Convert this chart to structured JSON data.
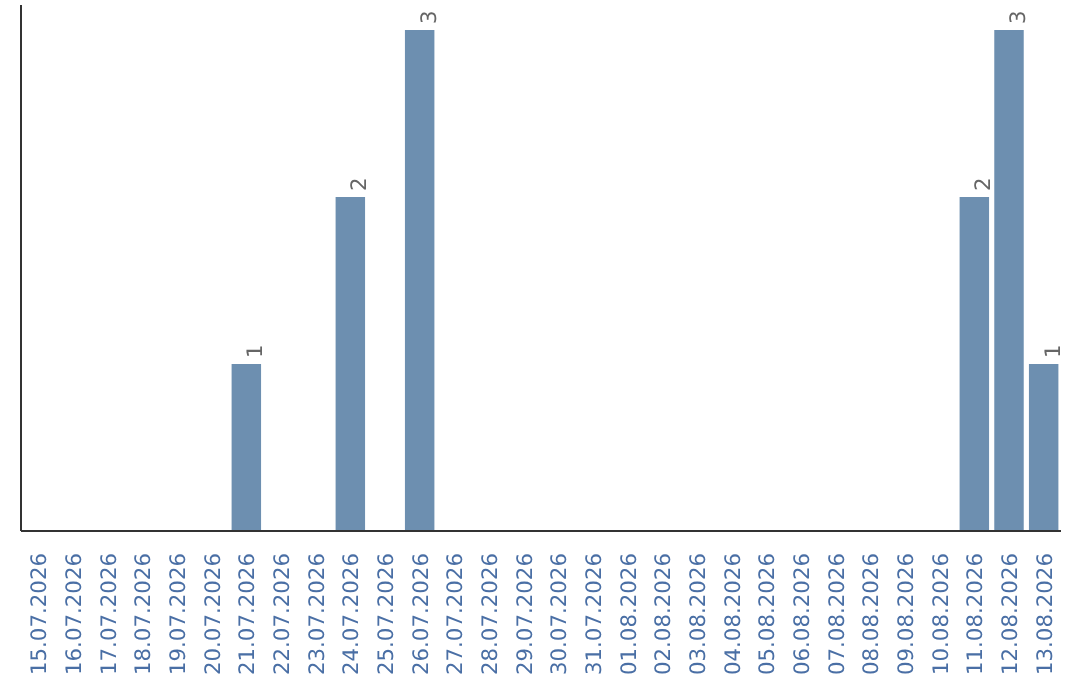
{
  "chart_data": {
    "type": "bar",
    "categories": [
      "15.07.2026",
      "16.07.2026",
      "17.07.2026",
      "18.07.2026",
      "19.07.2026",
      "20.07.2026",
      "21.07.2026",
      "22.07.2026",
      "23.07.2026",
      "24.07.2026",
      "25.07.2026",
      "26.07.2026",
      "27.07.2026",
      "28.07.2026",
      "29.07.2026",
      "30.07.2026",
      "31.07.2026",
      "01.08.2026",
      "02.08.2026",
      "03.08.2026",
      "04.08.2026",
      "05.08.2026",
      "06.08.2026",
      "07.08.2026",
      "08.08.2026",
      "09.08.2026",
      "10.08.2026",
      "11.08.2026",
      "12.08.2026",
      "13.08.2026"
    ],
    "values": [
      0,
      0,
      0,
      0,
      0,
      0,
      1,
      0,
      0,
      2,
      0,
      3,
      0,
      0,
      0,
      0,
      0,
      0,
      0,
      0,
      0,
      0,
      0,
      0,
      0,
      0,
      0,
      2,
      3,
      1
    ],
    "value_labels": [
      null,
      null,
      null,
      null,
      null,
      null,
      "1",
      null,
      null,
      "2",
      null,
      "3",
      null,
      null,
      null,
      null,
      null,
      null,
      null,
      null,
      null,
      null,
      null,
      null,
      null,
      null,
      null,
      "2",
      "3",
      "1"
    ],
    "color": "#6d8fb0",
    "ylim": [
      0,
      3.15
    ],
    "tick_labels": "x",
    "grid": false
  }
}
